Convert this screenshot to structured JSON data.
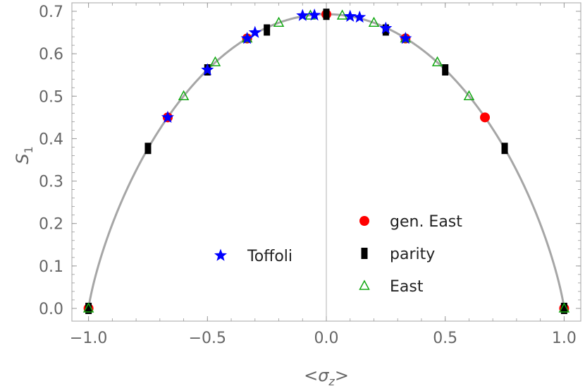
{
  "chart_data": {
    "type": "scatter",
    "xlabel": "<σz>",
    "ylabel": "S1",
    "xlim": [
      -1.07,
      1.07
    ],
    "ylim": [
      -0.03,
      0.72
    ],
    "xticks": [
      -1.0,
      -0.5,
      0.0,
      0.5,
      1.0
    ],
    "xtick_labels": [
      "−1.0",
      "−0.5",
      "0.0",
      "0.5",
      "1.0"
    ],
    "yticks": [
      0.0,
      0.1,
      0.2,
      0.3,
      0.4,
      0.5,
      0.6,
      0.7
    ],
    "ytick_labels": [
      "0.0",
      "0.1",
      "0.2",
      "0.3",
      "0.4",
      "0.5",
      "0.6",
      "0.7"
    ],
    "grid": false,
    "curve": {
      "color": "#a6a6a6"
    },
    "series": [
      {
        "name": "gen. East",
        "marker": "circle",
        "color": "#ff0000",
        "points": [
          [
            -1.0,
            0.0
          ],
          [
            -0.667,
            0.45
          ],
          [
            -0.333,
            0.636
          ],
          [
            0.0,
            0.693
          ],
          [
            0.333,
            0.636
          ],
          [
            0.667,
            0.45
          ],
          [
            1.0,
            0.0
          ]
        ]
      },
      {
        "name": "parity",
        "marker": "rect",
        "color": "#000000",
        "points": [
          [
            -1.0,
            0.0
          ],
          [
            -0.75,
            0.377
          ],
          [
            -0.5,
            0.562
          ],
          [
            -0.25,
            0.656
          ],
          [
            0.0,
            0.693
          ],
          [
            0.25,
            0.656
          ],
          [
            0.5,
            0.562
          ],
          [
            0.75,
            0.377
          ],
          [
            1.0,
            0.0
          ]
        ]
      },
      {
        "name": "East",
        "marker": "triangle",
        "color": "#13a813",
        "points": [
          [
            -1.0,
            0.0
          ],
          [
            -0.6,
            0.5
          ],
          [
            -0.467,
            0.58
          ],
          [
            -0.333,
            0.636
          ],
          [
            -0.2,
            0.673
          ],
          [
            -0.067,
            0.69
          ],
          [
            0.067,
            0.69
          ],
          [
            0.2,
            0.673
          ],
          [
            0.333,
            0.636
          ],
          [
            0.467,
            0.58
          ],
          [
            0.6,
            0.5
          ],
          [
            1.0,
            0.0
          ]
        ]
      },
      {
        "name": "Toffoli",
        "marker": "star",
        "color": "#0000ff",
        "points": [
          [
            -0.667,
            0.45
          ],
          [
            -0.5,
            0.562
          ],
          [
            -0.333,
            0.636
          ],
          [
            -0.3,
            0.65
          ],
          [
            -0.1,
            0.69
          ],
          [
            -0.05,
            0.691
          ],
          [
            0.1,
            0.688
          ],
          [
            0.14,
            0.686
          ],
          [
            0.25,
            0.66
          ],
          [
            0.333,
            0.636
          ]
        ]
      }
    ],
    "legend": {
      "upper_right": [
        "gen. East",
        "parity",
        "East"
      ],
      "left": [
        "Toffoli"
      ]
    }
  }
}
